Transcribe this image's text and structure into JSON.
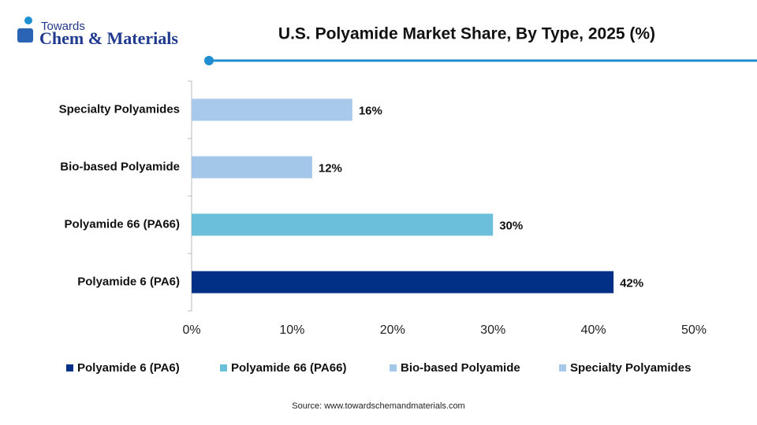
{
  "logo": {
    "line1": "Towards",
    "line2": "Chem & Materials"
  },
  "chart_data": {
    "type": "hbar",
    "title": "U.S. Polyamide Market Share, By Type, 2025 (%)",
    "categories": [
      "Polyamide 6 (PA6)",
      "Polyamide 66 (PA66)",
      "Bio-based Polyamide",
      "Specialty Polyamides"
    ],
    "values": [
      42,
      30,
      12,
      16
    ],
    "value_labels": [
      "42%",
      "30%",
      "12%",
      "16%"
    ],
    "colors": [
      "#023087",
      "#6cbfdb",
      "#a3c7e9",
      "#a9c9eb"
    ],
    "xlim": [
      0,
      50
    ],
    "xticks": [
      {
        "value": 0,
        "label": "0%"
      },
      {
        "value": 10,
        "label": "10%"
      },
      {
        "value": 20,
        "label": "20%"
      },
      {
        "value": 30,
        "label": "30%"
      },
      {
        "value": 40,
        "label": "40%"
      },
      {
        "value": 50,
        "label": "50%"
      }
    ],
    "legend": "bottom",
    "source": "Source: www.towardschemandmaterials.com"
  }
}
